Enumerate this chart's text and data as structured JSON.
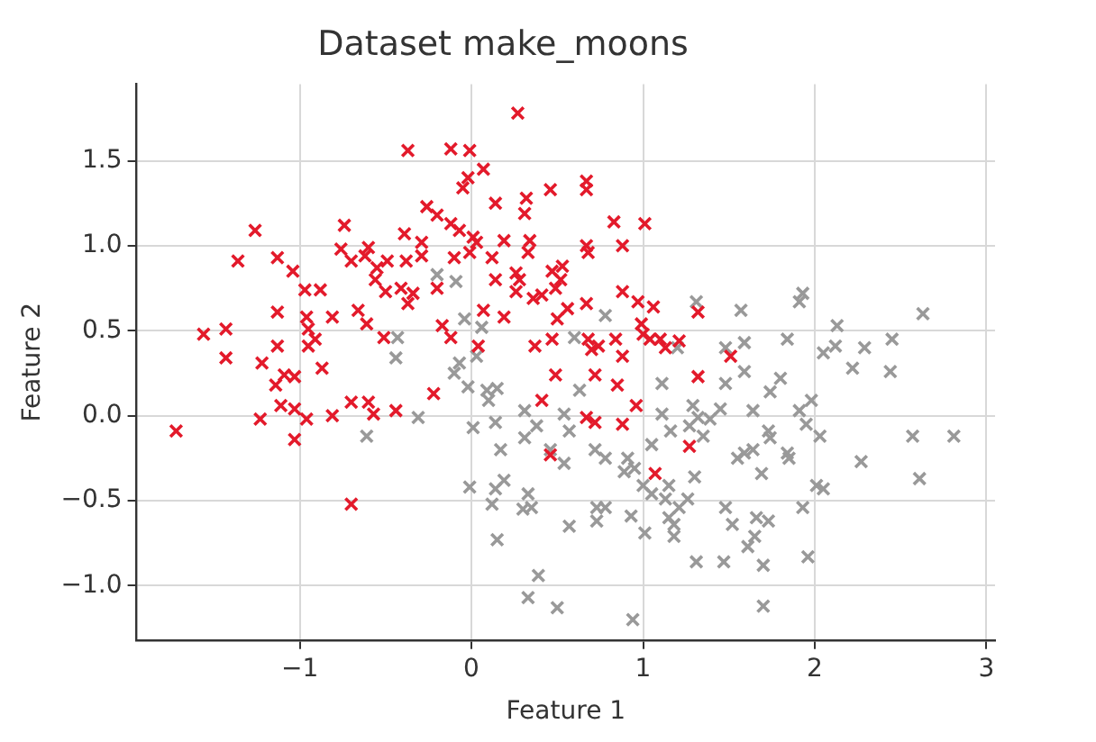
{
  "chart_data": {
    "type": "scatter",
    "title": "Dataset make_moons",
    "xlabel": "Feature 1",
    "ylabel": "Feature 2",
    "marker": "cross",
    "grid": true,
    "legend": false,
    "xlim": [
      -1.95,
      3.05
    ],
    "ylim": [
      -1.32,
      1.95
    ],
    "xticks": [
      -1,
      0,
      1,
      2,
      3
    ],
    "yticks": [
      {
        "value": -1,
        "label": "−1.0"
      },
      {
        "value": -0.5,
        "label": "−0.5"
      },
      {
        "value": 0,
        "label": "0.0"
      },
      {
        "value": 0.5,
        "label": "0.5"
      },
      {
        "value": 1,
        "label": "1.0"
      },
      {
        "value": 1.5,
        "label": "1.5"
      }
    ],
    "series": [
      {
        "color": "#e31a2b",
        "x": [
          0.27,
          -0.37,
          -0.12,
          -0.01,
          0.07,
          -0.02,
          -0.05,
          0.14,
          -0.26,
          -0.2,
          -0.12,
          -0.07,
          0.01,
          0.03,
          -1.26,
          -0.74,
          -0.39,
          -0.29,
          -0.76,
          -0.6,
          -1.36,
          -1.13,
          -1.04,
          -0.7,
          -0.62,
          -0.49,
          -0.38,
          -0.29,
          -0.1,
          -0.01,
          0.12,
          -0.97,
          -0.88,
          -0.56,
          -0.5,
          -0.41,
          -0.34,
          -0.55,
          -0.2,
          0.14,
          -0.66,
          -1.13,
          -0.96,
          -0.81,
          -0.61,
          -0.37,
          -0.51,
          -0.17,
          -0.12,
          0.07,
          0.04,
          -1.56,
          -1.43,
          -0.95,
          -0.91,
          -1.43,
          -1.22,
          -1.13,
          -0.95,
          0.32,
          0.46,
          0.67,
          0.67,
          0.31,
          0.19,
          0.34,
          0.33,
          0.83,
          1.01,
          0.88,
          0.67,
          0.68,
          0.26,
          0.28,
          0.47,
          0.53,
          0.52,
          0.49,
          0.26,
          0.36,
          0.41,
          0.67,
          0.88,
          0.97,
          1.06,
          1.32,
          0.56,
          0.5,
          0.19,
          0.37,
          0.47,
          0.68,
          0.74,
          0.84,
          0.99,
          1.0,
          1.1,
          1.21,
          0.88,
          1.51,
          0.7,
          -1.72,
          -1.14,
          -1.09,
          -1.03,
          -0.87,
          -1.11,
          -1.03,
          -0.96,
          -1.23,
          -1.03,
          -0.81,
          -0.7,
          -0.6,
          -0.57,
          -0.44,
          -0.22,
          -0.7,
          0.49,
          0.72,
          0.41,
          0.67,
          0.72,
          0.46,
          1.04,
          1.13,
          0.85,
          1.32,
          0.96,
          0.88,
          1.27,
          1.07
        ],
        "values": [
          1.78,
          1.56,
          1.57,
          1.56,
          1.45,
          1.4,
          1.34,
          1.25,
          1.23,
          1.18,
          1.13,
          1.09,
          1.05,
          1.02,
          1.09,
          1.12,
          1.07,
          1.02,
          0.98,
          0.99,
          0.91,
          0.93,
          0.85,
          0.91,
          0.94,
          0.91,
          0.91,
          0.94,
          0.93,
          0.96,
          0.93,
          0.74,
          0.74,
          0.8,
          0.73,
          0.75,
          0.72,
          0.87,
          0.75,
          0.8,
          0.62,
          0.61,
          0.58,
          0.58,
          0.54,
          0.66,
          0.46,
          0.53,
          0.46,
          0.62,
          0.41,
          0.48,
          0.51,
          0.51,
          0.45,
          0.34,
          0.31,
          0.41,
          0.41,
          1.28,
          1.33,
          1.38,
          1.33,
          1.19,
          1.03,
          1.03,
          0.96,
          1.14,
          1.13,
          1.0,
          1.0,
          0.96,
          0.84,
          0.8,
          0.85,
          0.88,
          0.8,
          0.75,
          0.73,
          0.69,
          0.71,
          0.66,
          0.73,
          0.67,
          0.64,
          0.61,
          0.63,
          0.57,
          0.58,
          0.41,
          0.45,
          0.45,
          0.41,
          0.45,
          0.54,
          0.48,
          0.45,
          0.44,
          0.35,
          0.35,
          0.39,
          -0.09,
          0.18,
          0.24,
          0.23,
          0.28,
          0.06,
          0.04,
          -0.02,
          -0.02,
          -0.14,
          0.0,
          0.08,
          0.08,
          0.01,
          0.03,
          0.13,
          -0.52,
          0.24,
          0.24,
          0.09,
          -0.01,
          -0.04,
          -0.23,
          0.45,
          0.4,
          0.18,
          0.23,
          0.06,
          -0.05,
          -0.18,
          -0.34
        ]
      },
      {
        "color": "#999999",
        "x": [
          -0.2,
          -0.09,
          -0.04,
          0.06,
          -0.43,
          -0.44,
          0.03,
          -0.07,
          0.6,
          0.78,
          1.31,
          1.57,
          1.84,
          1.48,
          1.59,
          1.2,
          -0.31,
          -0.61,
          -0.1,
          -0.02,
          0.09,
          0.15,
          0.1,
          0.01,
          0.14,
          0.17,
          0.31,
          0.38,
          0.31,
          0.54,
          0.63,
          0.57,
          0.46,
          0.54,
          0.72,
          0.78,
          -0.01,
          0.14,
          0.19,
          0.12,
          0.33,
          0.3,
          0.35,
          0.15,
          0.57,
          0.73,
          0.78,
          0.39,
          0.33,
          0.5,
          1.93,
          1.91,
          2.63,
          2.13,
          2.05,
          2.12,
          2.29,
          2.45,
          2.22,
          2.44,
          1.59,
          1.48,
          1.11,
          1.8,
          1.74,
          1.98,
          1.91,
          1.64,
          1.95,
          2.03,
          1.73,
          1.74,
          1.84,
          1.85,
          1.64,
          1.55,
          1.59,
          1.69,
          1.3,
          1.45,
          1.39,
          1.29,
          1.32,
          1.27,
          1.35,
          1.16,
          1.11,
          1.05,
          0.91,
          0.95,
          0.89,
          1.0,
          1.05,
          1.15,
          1.13,
          1.21,
          1.26,
          1.18,
          1.15,
          0.73,
          0.93,
          1.01,
          1.18,
          1.48,
          1.52,
          1.66,
          1.73,
          1.65,
          1.61,
          1.93,
          2.01,
          2.05,
          2.27,
          2.57,
          2.81,
          2.61,
          1.31,
          1.47,
          1.7,
          1.96,
          1.7,
          0.94
        ],
        "values": [
          0.83,
          0.79,
          0.57,
          0.52,
          0.46,
          0.34,
          0.35,
          0.31,
          0.46,
          0.59,
          0.67,
          0.62,
          0.45,
          0.4,
          0.43,
          0.4,
          -0.01,
          -0.12,
          0.25,
          0.17,
          0.15,
          0.16,
          0.09,
          -0.07,
          -0.04,
          -0.2,
          0.03,
          -0.06,
          -0.13,
          0.01,
          0.15,
          -0.09,
          -0.2,
          -0.28,
          -0.2,
          -0.25,
          -0.42,
          -0.43,
          -0.38,
          -0.52,
          -0.46,
          -0.55,
          -0.54,
          -0.73,
          -0.65,
          -0.62,
          -0.54,
          -0.94,
          -1.07,
          -1.13,
          0.72,
          0.67,
          0.6,
          0.53,
          0.37,
          0.41,
          0.4,
          0.45,
          0.28,
          0.26,
          0.26,
          0.19,
          0.19,
          0.22,
          0.14,
          0.09,
          0.03,
          0.03,
          -0.05,
          -0.12,
          -0.09,
          -0.13,
          -0.22,
          -0.25,
          -0.2,
          -0.25,
          -0.22,
          -0.34,
          -0.36,
          0.04,
          -0.02,
          0.06,
          -0.01,
          -0.06,
          -0.12,
          -0.09,
          0.01,
          -0.17,
          -0.25,
          -0.31,
          -0.33,
          -0.41,
          -0.46,
          -0.41,
          -0.49,
          -0.54,
          -0.49,
          -0.64,
          -0.6,
          -0.54,
          -0.59,
          -0.69,
          -0.71,
          -0.54,
          -0.64,
          -0.6,
          -0.62,
          -0.71,
          -0.77,
          -0.54,
          -0.41,
          -0.43,
          -0.27,
          -0.12,
          -0.12,
          -0.37,
          -0.86,
          -0.86,
          -0.88,
          -0.83,
          -1.12,
          -1.2
        ]
      }
    ]
  }
}
